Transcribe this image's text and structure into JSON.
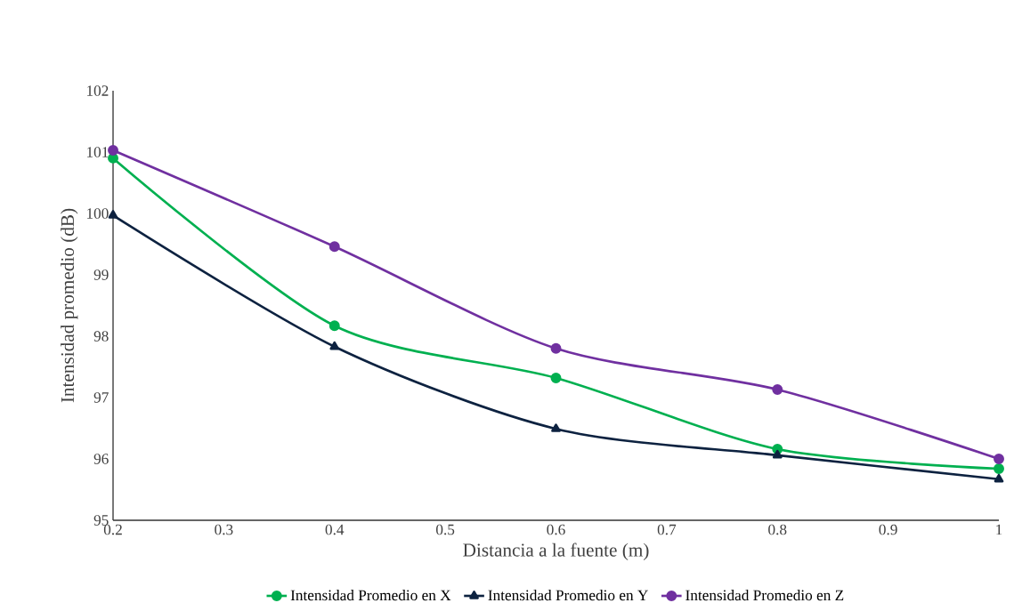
{
  "chart_data": {
    "type": "line",
    "xlabel": "Distancia a la fuente (m)",
    "ylabel": "Intensidad promedio (dB)",
    "x": [
      0.2,
      0.4,
      0.6,
      0.8,
      1
    ],
    "series": [
      {
        "name": "Intensidad Promedio en X",
        "color": "#00b050",
        "marker": "circle",
        "values": [
          100.9,
          98.17,
          97.32,
          96.16,
          95.84
        ]
      },
      {
        "name": "Intensidad Promedio en Y",
        "color": "#0d2240",
        "marker": "triangle",
        "values": [
          99.97,
          97.83,
          96.49,
          96.06,
          95.67
        ]
      },
      {
        "name": "Intensidad Promedio en Z",
        "color": "#7030a0",
        "marker": "circle",
        "values": [
          101.03,
          99.46,
          97.8,
          97.13,
          96.0
        ]
      }
    ],
    "xlim": [
      0.2,
      1
    ],
    "xticks": [
      0.2,
      0.3,
      0.4,
      0.5,
      0.6,
      0.7,
      0.8,
      0.9,
      1
    ],
    "ylim": [
      95,
      102
    ],
    "yticks": [
      95,
      96,
      97,
      98,
      99,
      100,
      101,
      102
    ],
    "grid": false,
    "legend": "bottom",
    "line_style": "solid"
  }
}
